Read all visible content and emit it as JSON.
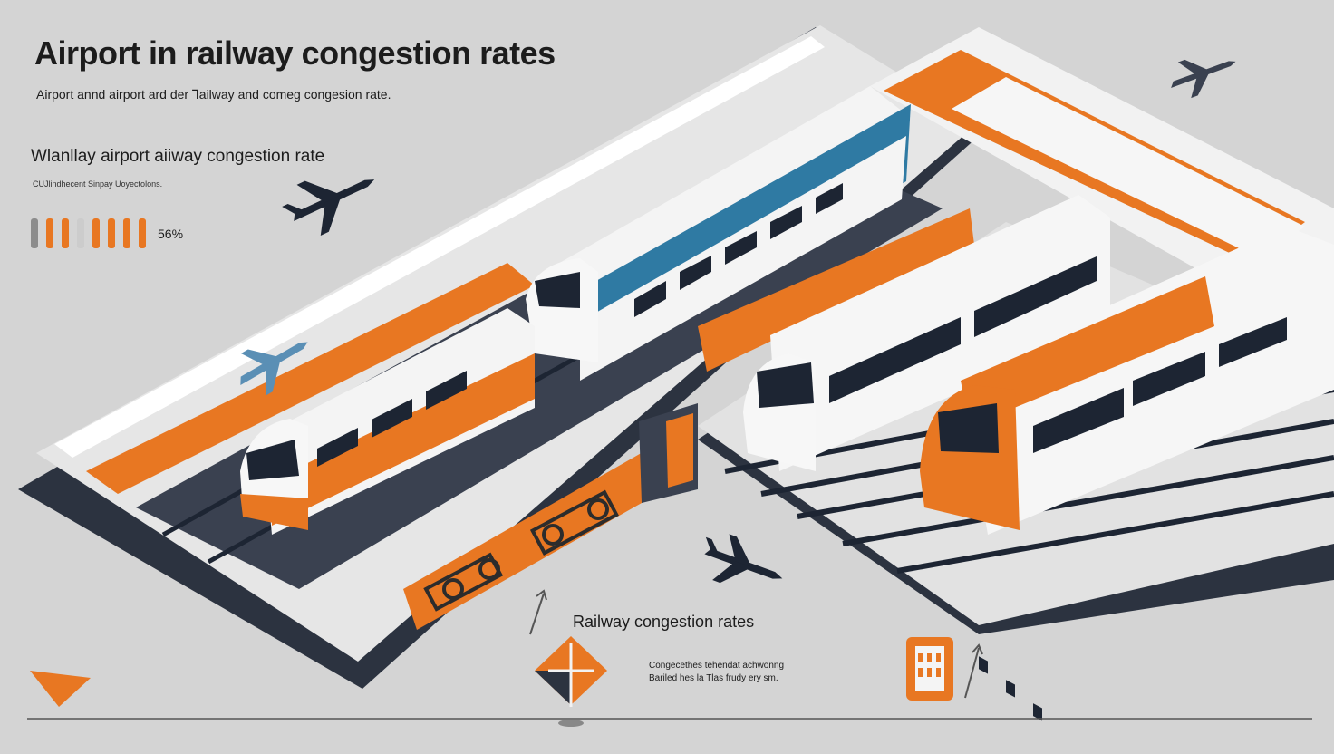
{
  "header": {
    "title": "Airport in railway congestion rates",
    "subtitle": "Airport annd airport ard der Ꞁailway and comeg congesion rate."
  },
  "metric_panel": {
    "title": "Wlanllay airport aiiway congestion rate",
    "caption": "CUJlindhecent Sinpay Uoyectolons.",
    "value_label": "56%",
    "gauge": {
      "level_fraction": 0.56,
      "colors": [
        "#8c8c8c",
        "#e87722",
        "#e87722",
        "#cccccc",
        "#e87722",
        "#e87722",
        "#e87722",
        "#e87722"
      ]
    }
  },
  "section": {
    "title": "Railway congestion rates",
    "note_line1": "Congecethes tehendat achwonng",
    "note_line2": "Bariled hes la Tlas frudy ery sm."
  },
  "icons": [
    "airplane-icon",
    "diamond-direction-icon",
    "station-building-icon",
    "arrow-icon"
  ],
  "palette": {
    "background": "#d4d4d4",
    "accent_orange": "#e87722",
    "train_blue": "#2f7aa3",
    "dark_navy": "#1d2533",
    "white": "#f6f6f6"
  }
}
